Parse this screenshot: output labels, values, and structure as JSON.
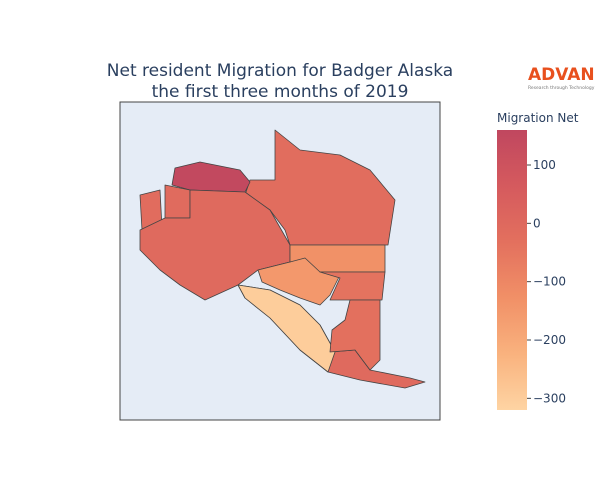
{
  "chart_data": {
    "type": "choropleth",
    "title": [
      "Net resident Migration for Badger Alaska",
      "the first three months of 2019"
    ],
    "colorbar_title": "Migration Net",
    "values": [
      -20,
      150,
      -10,
      -15,
      -5,
      -300,
      -150,
      -130,
      -40,
      -30
    ],
    "colors": [
      "#fed4a3",
      "#f9b27e",
      "#f19067",
      "#e3705e",
      "#d55a5e",
      "#c0475f"
    ],
    "clim": [
      -320,
      160
    ],
    "cticks": [
      {
        "value": 100,
        "label": "100"
      },
      {
        "value": 0,
        "label": "0"
      },
      {
        "value": -100,
        "label": "−100"
      },
      {
        "value": -200,
        "label": "−200"
      },
      {
        "value": -300,
        "label": "−300"
      }
    ]
  },
  "logo": {
    "name": "ADVAN",
    "tagline": "Research through Technology"
  }
}
